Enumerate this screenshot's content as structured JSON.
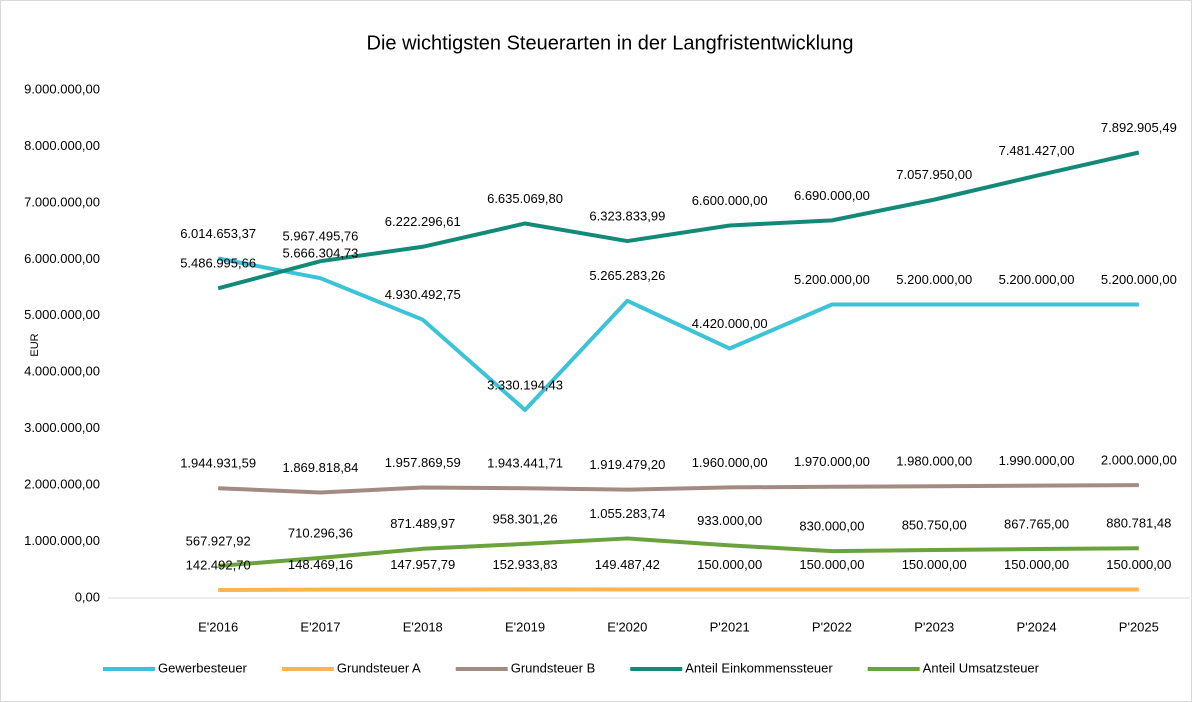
{
  "chart_data": {
    "type": "line",
    "title": "Die wichtigsten Steuerarten in der Langfristentwicklung",
    "y_label": "EUR",
    "categories": [
      "E'2016",
      "E'2017",
      "E'2018",
      "E'2019",
      "E'2020",
      "P'2021",
      "P'2022",
      "P'2023",
      "P'2024",
      "P'2025"
    ],
    "ylim": [
      0,
      9000000
    ],
    "yticks": [
      {
        "value": 0,
        "label": "0,00"
      },
      {
        "value": 1000000,
        "label": "1.000.000,00"
      },
      {
        "value": 2000000,
        "label": "2.000.000,00"
      },
      {
        "value": 3000000,
        "label": "3.000.000,00"
      },
      {
        "value": 4000000,
        "label": "4.000.000,00"
      },
      {
        "value": 5000000,
        "label": "5.000.000,00"
      },
      {
        "value": 6000000,
        "label": "6.000.000,00"
      },
      {
        "value": 7000000,
        "label": "7.000.000,00"
      },
      {
        "value": 8000000,
        "label": "8.000.000,00"
      },
      {
        "value": 9000000,
        "label": "9.000.000,00"
      }
    ],
    "grid": false,
    "legend": "bottom",
    "series": [
      {
        "name": "Gewerbesteuer",
        "color": "#3cc3d8",
        "values": [
          6014653.37,
          5666304.73,
          4930492.75,
          3330194.43,
          5265283.26,
          4420000,
          5200000,
          5200000,
          5200000,
          5200000
        ],
        "value_labels": [
          "6.014.653,37",
          "5.666.304,73",
          "4.930.492,75",
          "3.330.194,43",
          "5.265.283,26",
          "4.420.000,00",
          "5.200.000,00",
          "5.200.000,00",
          "5.200.000,00",
          "5.200.000,00"
        ]
      },
      {
        "name": "Grundsteuer A",
        "color": "#f9b54f",
        "values": [
          142492.7,
          148469.16,
          147957.79,
          152933.83,
          149487.42,
          150000,
          150000,
          150000,
          150000,
          150000
        ],
        "value_labels": [
          "142.492,70",
          "148.469,16",
          "147.957,79",
          "152.933,83",
          "149.487,42",
          "150.000,00",
          "150.000,00",
          "150.000,00",
          "150.000,00",
          "150.000,00"
        ]
      },
      {
        "name": "Grundsteuer B",
        "color": "#a38b83",
        "values": [
          1944931.59,
          1869818.84,
          1957869.59,
          1943441.71,
          1919479.2,
          1960000,
          1970000,
          1980000,
          1990000,
          2000000
        ],
        "value_labels": [
          "1.944.931,59",
          "1.869.818,84",
          "1.957.869,59",
          "1.943.441,71",
          "1.919.479,20",
          "1.960.000,00",
          "1.970.000,00",
          "1.980.000,00",
          "1.990.000,00",
          "2.000.000,00"
        ]
      },
      {
        "name": "Anteil Einkommenssteuer",
        "color": "#138a78",
        "values": [
          5486995.66,
          5967495.76,
          6222296.61,
          6635069.8,
          6323833.99,
          6600000,
          6690000,
          7057950,
          7481427,
          7892905.49
        ],
        "value_labels": [
          "5.486.995,66",
          "5.967.495,76",
          "6.222.296,61",
          "6.635.069,80",
          "6.323.833,99",
          "6.600.000,00",
          "6.690.000,00",
          "7.057.950,00",
          "7.481.427,00",
          "7.892.905,49"
        ]
      },
      {
        "name": "Anteil Umsatzsteuer",
        "color": "#6aa23e",
        "values": [
          567927.92,
          710296.36,
          871489.97,
          958301.26,
          1055283.74,
          933000,
          830000,
          850750,
          867765,
          880781.48
        ],
        "value_labels": [
          "567.927,92",
          "710.296,36",
          "871.489,97",
          "958.301,26",
          "1.055.283,74",
          "933.000,00",
          "830.000,00",
          "850.750,00",
          "867.765,00",
          "880.781,48"
        ]
      }
    ]
  }
}
